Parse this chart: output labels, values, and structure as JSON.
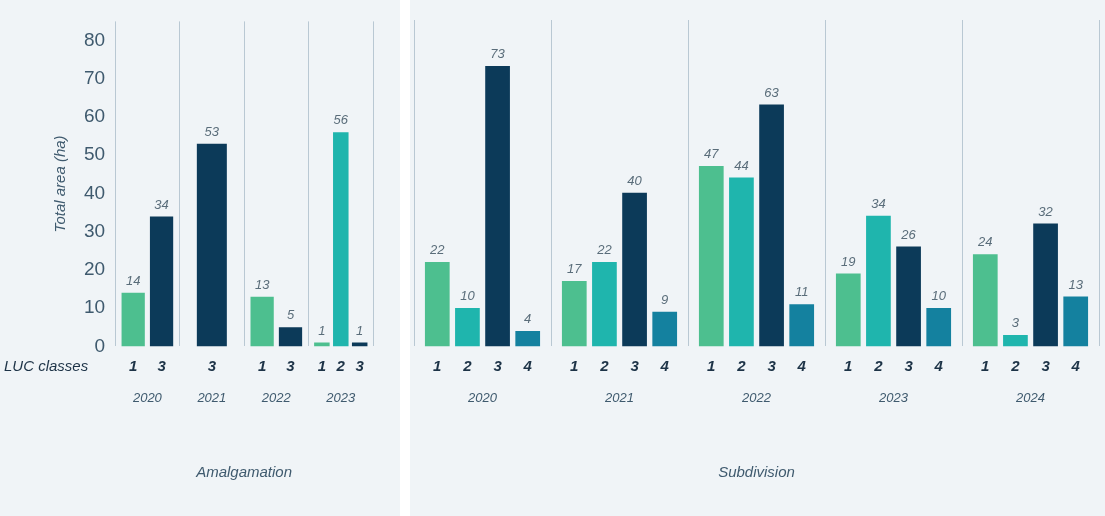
{
  "chart_data": [
    {
      "type": "bar",
      "xlabel": "Amalgamation",
      "ylabel": "Total area (ha)",
      "legend_title": "LUC classes",
      "categories": [
        "2020",
        "2021",
        "2022",
        "2023"
      ],
      "ylim": [
        0,
        85
      ],
      "yticks": [
        0,
        10,
        20,
        30,
        40,
        50,
        60,
        70,
        80
      ],
      "grid": "x",
      "data_labels": true,
      "series": [
        {
          "name": "1",
          "color": "#4dbf8f",
          "values": [
            14,
            null,
            13,
            1
          ]
        },
        {
          "name": "2",
          "color": "#1fb5ad",
          "values": [
            null,
            null,
            null,
            56
          ]
        },
        {
          "name": "3",
          "color": "#0c3a59",
          "values": [
            34,
            53,
            5,
            1
          ]
        },
        {
          "name": "4",
          "color": "#14819f",
          "values": [
            null,
            null,
            null,
            null
          ]
        }
      ]
    },
    {
      "type": "bar",
      "xlabel": "Subdivision",
      "categories": [
        "2020",
        "2021",
        "2022",
        "2023",
        "2024"
      ],
      "ylim": [
        0,
        85
      ],
      "yticks": [
        0,
        10,
        20,
        30,
        40,
        50,
        60,
        70,
        80
      ],
      "grid": "x",
      "tick_labels": "x",
      "data_labels": true,
      "series": [
        {
          "name": "1",
          "color": "#4dbf8f",
          "values": [
            22,
            17,
            47,
            19,
            24
          ]
        },
        {
          "name": "2",
          "color": "#1fb5ad",
          "values": [
            10,
            22,
            44,
            34,
            3
          ]
        },
        {
          "name": "3",
          "color": "#0c3a59",
          "values": [
            73,
            40,
            63,
            26,
            32
          ]
        },
        {
          "name": "4",
          "color": "#14819f",
          "values": [
            4,
            9,
            11,
            10,
            13
          ]
        }
      ]
    }
  ]
}
